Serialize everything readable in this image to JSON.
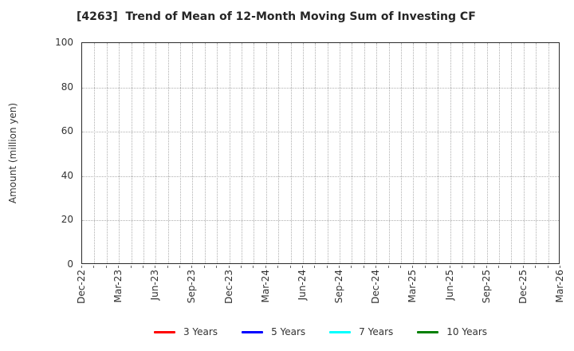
{
  "chart_data": {
    "type": "line",
    "title": "[4263]  Trend of Mean of 12-Month Moving Sum of Investing CF",
    "xlabel": "",
    "ylabel": "Amount (million yen)",
    "ylim": [
      0,
      100
    ],
    "yticks": [
      0,
      20,
      40,
      60,
      80,
      100
    ],
    "x_tick_labels": [
      "Dec-22",
      "Mar-23",
      "Jun-23",
      "Sep-23",
      "Dec-23",
      "Mar-24",
      "Jun-24",
      "Sep-24",
      "Dec-24",
      "Mar-25",
      "Jun-25",
      "Sep-25",
      "Dec-25",
      "Mar-26"
    ],
    "label_every_months": 3,
    "grid": true,
    "grid_style": "dotted",
    "legend_position": "bottom",
    "series": [
      {
        "name": "3 Years",
        "color": "#ff0000",
        "values": []
      },
      {
        "name": "5 Years",
        "color": "#0000ff",
        "values": []
      },
      {
        "name": "7 Years",
        "color": "#00ffff",
        "values": []
      },
      {
        "name": "10 Years",
        "color": "#008000",
        "values": []
      }
    ],
    "colors": {
      "axis_border": "#2a2a2a",
      "grid": "#b0b0b0",
      "text": "#333333",
      "title_text": "#262626",
      "background": "#ffffff"
    }
  }
}
